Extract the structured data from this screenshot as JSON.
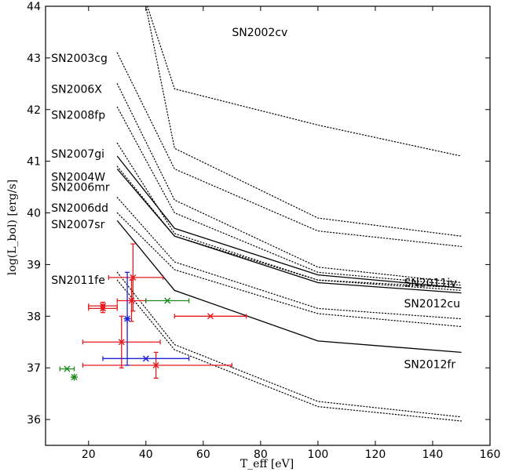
{
  "chart_data": {
    "type": "line",
    "xlabel": "T_eff  [eV]",
    "ylabel": "log(L_bol)  [erg/s]",
    "xlim": [
      5,
      160
    ],
    "ylim": [
      35.5,
      44
    ],
    "xticks": [
      20,
      40,
      60,
      80,
      100,
      120,
      140,
      160
    ],
    "yticks": [
      36,
      37,
      38,
      39,
      40,
      41,
      42,
      43,
      44
    ],
    "grid": false,
    "legend": "none",
    "series": [
      {
        "name": "SN2002cv",
        "style": "dotted",
        "points": [
          [
            40,
            44.0
          ],
          [
            50,
            41.25
          ],
          [
            100,
            39.9
          ],
          [
            150,
            39.55
          ]
        ]
      },
      {
        "name": "",
        "style": "dotted",
        "points": [
          [
            40.5,
            44.0
          ],
          [
            50,
            42.4
          ],
          [
            100,
            41.7
          ],
          [
            150,
            41.1
          ]
        ]
      },
      {
        "name": "SN2003cg",
        "style": "dotted",
        "points": [
          [
            30,
            43.1
          ],
          [
            50,
            40.85
          ],
          [
            100,
            39.65
          ],
          [
            150,
            39.35
          ]
        ]
      },
      {
        "name": "SN2006X",
        "style": "dotted",
        "points": [
          [
            30,
            42.5
          ],
          [
            50,
            40.25
          ],
          [
            100,
            38.95
          ],
          [
            150,
            38.65
          ]
        ]
      },
      {
        "name": "SN2008fp",
        "style": "dotted",
        "points": [
          [
            30,
            42.05
          ],
          [
            50,
            40.0
          ],
          [
            100,
            38.85
          ],
          [
            150,
            38.6
          ]
        ]
      },
      {
        "name": "SN2007gi",
        "style": "dotted",
        "points": [
          [
            30,
            41.35
          ],
          [
            50,
            39.6
          ],
          [
            100,
            38.7
          ],
          [
            150,
            38.55
          ]
        ]
      },
      {
        "name": "SN2004W",
        "style": "solid",
        "points": [
          [
            30,
            41.1
          ],
          [
            50,
            39.7
          ],
          [
            100,
            38.8
          ],
          [
            150,
            38.55
          ]
        ]
      },
      {
        "name": "SN2006mr",
        "style": "solid",
        "points": [
          [
            30,
            40.85
          ],
          [
            50,
            39.55
          ],
          [
            100,
            38.65
          ],
          [
            150,
            38.45
          ]
        ]
      },
      {
        "name": "",
        "style": "dotted",
        "points": [
          [
            30,
            40.9
          ],
          [
            50,
            39.55
          ],
          [
            100,
            38.7
          ],
          [
            150,
            38.5
          ]
        ]
      },
      {
        "name": "SN2006dd",
        "style": "dotted",
        "points": [
          [
            30,
            40.3
          ],
          [
            50,
            39.05
          ],
          [
            100,
            38.15
          ],
          [
            150,
            37.95
          ]
        ]
      },
      {
        "name": "SN2007sr",
        "style": "dotted",
        "points": [
          [
            30,
            40.0
          ],
          [
            50,
            38.9
          ],
          [
            100,
            38.05
          ],
          [
            150,
            37.8
          ]
        ]
      },
      {
        "name": "",
        "style": "solid",
        "points": [
          [
            30,
            39.85
          ],
          [
            50,
            38.5
          ],
          [
            100,
            37.52
          ],
          [
            150,
            37.3
          ]
        ]
      },
      {
        "name": "",
        "style": "dotted",
        "points": [
          [
            30,
            38.85
          ],
          [
            50,
            37.45
          ],
          [
            100,
            36.35
          ],
          [
            150,
            36.05
          ]
        ]
      },
      {
        "name": "SN2011fe",
        "style": "dotted",
        "points": [
          [
            30,
            38.7
          ],
          [
            50,
            37.35
          ],
          [
            100,
            36.25
          ],
          [
            150,
            35.97
          ]
        ]
      }
    ],
    "line_labels": [
      {
        "text": "SN2002cv",
        "x": 70,
        "y": 43.5,
        "anchor": "start"
      },
      {
        "text": "SN2003cg",
        "x": 7,
        "y": 43.0,
        "anchor": "start"
      },
      {
        "text": "SN2006X",
        "x": 7,
        "y": 42.4,
        "anchor": "start"
      },
      {
        "text": "SN2008fp",
        "x": 7,
        "y": 41.9,
        "anchor": "start"
      },
      {
        "text": "SN2007gi",
        "x": 7,
        "y": 41.15,
        "anchor": "start"
      },
      {
        "text": "SN2004W",
        "x": 7,
        "y": 40.7,
        "anchor": "start"
      },
      {
        "text": "SN2006mr",
        "x": 7,
        "y": 40.5,
        "anchor": "start"
      },
      {
        "text": "SN2006dd",
        "x": 7,
        "y": 40.1,
        "anchor": "start"
      },
      {
        "text": "SN2007sr",
        "x": 7,
        "y": 39.78,
        "anchor": "start"
      },
      {
        "text": "SN2011fe",
        "x": 7,
        "y": 38.7,
        "anchor": "start"
      },
      {
        "text": "SN2011iv",
        "x": 130,
        "y": 38.65,
        "anchor": "start"
      },
      {
        "text": "SN2012cu",
        "x": 130,
        "y": 38.25,
        "anchor": "start"
      },
      {
        "text": "SN2012fr",
        "x": 130,
        "y": 37.07,
        "anchor": "start"
      }
    ],
    "points": [
      {
        "x": 35.5,
        "y": 38.75,
        "xerr": [
          27,
          46
        ],
        "yerr": [
          38.1,
          39.4
        ],
        "color": "#e41a1c",
        "marker": "x"
      },
      {
        "x": 35.0,
        "y": 38.3,
        "xerr": [
          30,
          40
        ],
        "yerr": [
          37.9,
          38.7
        ],
        "color": "#e41a1c",
        "marker": "x"
      },
      {
        "x": 25.0,
        "y": 38.2,
        "xerr": [
          20,
          30
        ],
        "yerr": [
          38.12,
          38.27
        ],
        "color": "#e41a1c",
        "marker": "x"
      },
      {
        "x": 25.0,
        "y": 38.15,
        "xerr": [
          20,
          30
        ],
        "yerr": [
          38.07,
          38.22
        ],
        "color": "#e41a1c",
        "marker": "x"
      },
      {
        "x": 62.5,
        "y": 38.0,
        "xerr": [
          50,
          75
        ],
        "yerr": [
          38.0,
          38.0
        ],
        "color": "#e41a1c",
        "marker": "x"
      },
      {
        "x": 31.5,
        "y": 37.5,
        "xerr": [
          18,
          45
        ],
        "yerr": [
          37.0,
          38.0
        ],
        "color": "#e41a1c",
        "marker": "x"
      },
      {
        "x": 43.5,
        "y": 37.05,
        "xerr": [
          18,
          70
        ],
        "yerr": [
          36.8,
          37.3
        ],
        "color": "#e41a1c",
        "marker": "x"
      },
      {
        "x": 47.5,
        "y": 38.3,
        "xerr": [
          40,
          55
        ],
        "yerr": [
          38.3,
          38.3
        ],
        "color": "#1a8a1a",
        "marker": "x"
      },
      {
        "x": 12.5,
        "y": 36.98,
        "xerr": [
          10,
          15
        ],
        "yerr": [
          36.98,
          36.98
        ],
        "color": "#1a8a1a",
        "marker": "x"
      },
      {
        "x": 15.0,
        "y": 36.82,
        "xerr": [
          15,
          15
        ],
        "yerr": [
          36.82,
          36.82
        ],
        "color": "#1a8a1a",
        "marker": "star"
      },
      {
        "x": 33.5,
        "y": 37.95,
        "xerr": [
          33.5,
          33.5
        ],
        "yerr": [
          37.05,
          38.85
        ],
        "color": "#1f1fd6",
        "marker": "star"
      },
      {
        "x": 40.0,
        "y": 37.18,
        "xerr": [
          25,
          55
        ],
        "yerr": [
          37.18,
          37.18
        ],
        "color": "#1f1fd6",
        "marker": "x"
      }
    ]
  }
}
